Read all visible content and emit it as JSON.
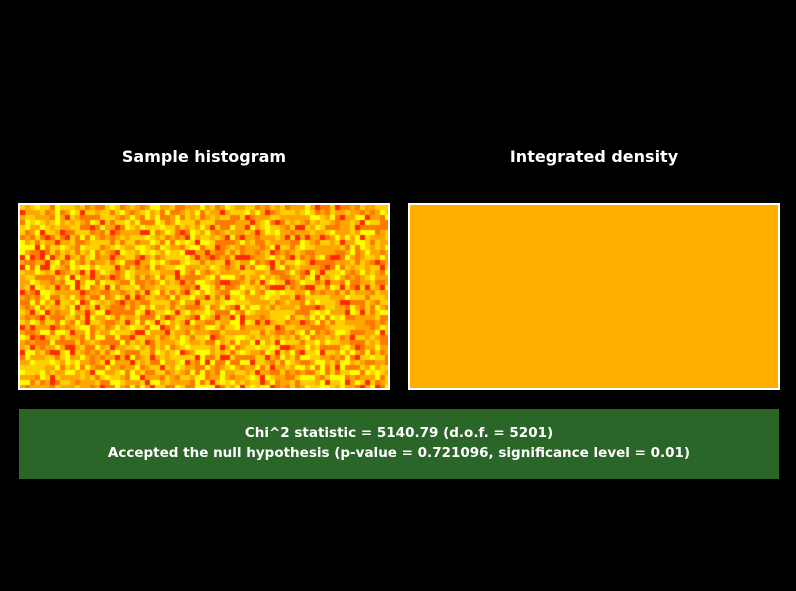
{
  "chart_data": [
    {
      "type": "heatmap",
      "title": "Sample histogram",
      "grid": false,
      "legend": "none",
      "description_colors": [
        "#ff2a00",
        "#ff7a00",
        "#ffa500",
        "#ffd000",
        "#ffff00"
      ]
    },
    {
      "type": "heatmap",
      "title": "Integrated density",
      "grid": false,
      "legend": "none",
      "fill_color": "#ffae00"
    }
  ],
  "result": {
    "line1": "Chi^2 statistic = 5140.79 (d.o.f. = 5201)",
    "line2": "Accepted the null hypothesis (p-value = 0.721096, significance level = 0.01)",
    "status_color": "#2b6629"
  }
}
